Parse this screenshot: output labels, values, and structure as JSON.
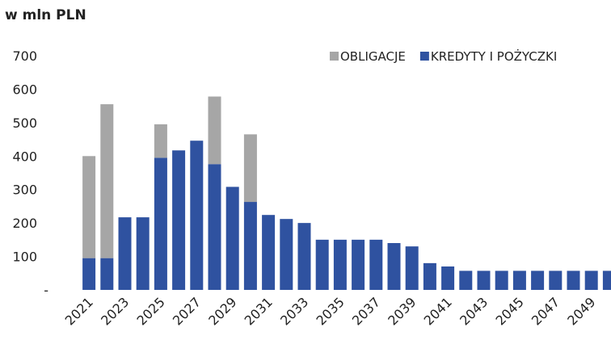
{
  "chart_data": {
    "type": "bar",
    "stacked": true,
    "title": "w mln PLN",
    "categories": [
      "2021",
      null,
      "2023",
      null,
      "2025",
      null,
      "2027",
      null,
      "2029",
      null,
      "2031",
      null,
      "2033",
      null,
      "2035",
      null,
      "2037",
      null,
      "2039",
      null,
      "2041",
      null,
      "2043",
      null,
      "2045",
      null,
      "2047",
      null,
      "2049",
      null
    ],
    "series": [
      {
        "name": "KREDYTY I POŻYCZKI",
        "color": "#2f52a0",
        "values": [
          95,
          95,
          217,
          217,
          395,
          417,
          446,
          376,
          308,
          263,
          224,
          212,
          200,
          150,
          150,
          150,
          150,
          140,
          130,
          80,
          70,
          57,
          57,
          57,
          57,
          57,
          57,
          57,
          57,
          57
        ]
      },
      {
        "name": "OBLIGACJE",
        "color": "#a6a6a6",
        "values": [
          305,
          460,
          0,
          0,
          100,
          0,
          0,
          202,
          0,
          202,
          0,
          0,
          0,
          0,
          0,
          0,
          0,
          0,
          0,
          0,
          0,
          0,
          0,
          0,
          0,
          0,
          0,
          0,
          0,
          0
        ]
      }
    ],
    "ylim": [
      0,
      700
    ],
    "yticks": [
      {
        "value": 0,
        "label": "-"
      },
      100,
      200,
      300,
      400,
      500,
      600,
      700
    ],
    "legend": "top-right"
  }
}
